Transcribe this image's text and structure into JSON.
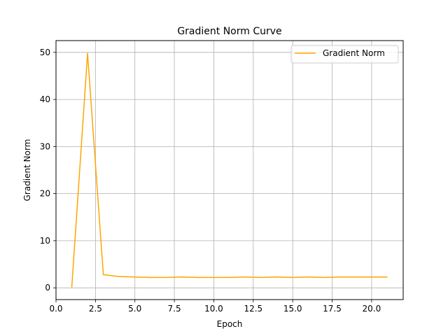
{
  "chart_data": {
    "type": "line",
    "title": "Gradient Norm Curve",
    "xlabel": "Epoch",
    "ylabel": "Gradient Norm",
    "xlim": [
      0,
      22
    ],
    "ylim": [
      -2.5,
      52.5
    ],
    "xticks": [
      0.0,
      2.5,
      5.0,
      7.5,
      10.0,
      12.5,
      15.0,
      17.5,
      20.0
    ],
    "xtick_labels": [
      "0.0",
      "2.5",
      "5.0",
      "7.5",
      "10.0",
      "12.5",
      "15.0",
      "17.5",
      "20.0"
    ],
    "yticks": [
      0,
      10,
      20,
      30,
      40,
      50
    ],
    "ytick_labels": [
      "0",
      "10",
      "20",
      "30",
      "40",
      "50"
    ],
    "grid": true,
    "legend": {
      "position": "top-right"
    },
    "series": [
      {
        "name": "Gradient Norm",
        "color": "#ffa500",
        "x": [
          1,
          2,
          3,
          4,
          5,
          6,
          7,
          8,
          9,
          10,
          11,
          12,
          13,
          14,
          15,
          16,
          17,
          18,
          19,
          20,
          21
        ],
        "y": [
          0.1,
          49.8,
          2.8,
          2.4,
          2.3,
          2.2,
          2.2,
          2.3,
          2.2,
          2.2,
          2.2,
          2.3,
          2.2,
          2.3,
          2.2,
          2.3,
          2.2,
          2.3,
          2.3,
          2.3,
          2.3
        ]
      }
    ]
  }
}
